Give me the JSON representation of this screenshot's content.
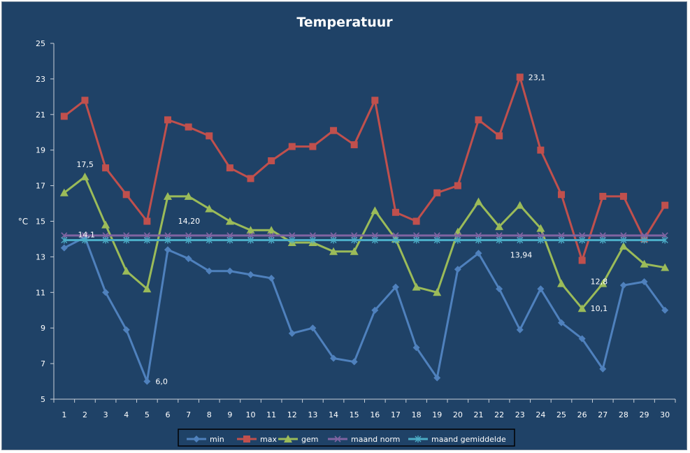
{
  "chart_data": {
    "type": "line",
    "title": "Temperatuur",
    "ylabel": "°C",
    "xlabel": "",
    "ylim": [
      5,
      25
    ],
    "yticks": [
      5,
      7,
      9,
      11,
      13,
      15,
      17,
      19,
      21,
      23,
      25
    ],
    "categories": [
      "1",
      "2",
      "3",
      "4",
      "5",
      "6",
      "7",
      "8",
      "9",
      "10",
      "11",
      "12",
      "13",
      "14",
      "15",
      "16",
      "17",
      "18",
      "19",
      "20",
      "21",
      "22",
      "23",
      "24",
      "25",
      "26",
      "27",
      "28",
      "29",
      "30"
    ],
    "grid": false,
    "legend_position": "bottom",
    "series": [
      {
        "name": "min",
        "color": "#4f81bd",
        "marker": "diamond",
        "values": [
          13.5,
          14.1,
          11.0,
          8.9,
          6.0,
          13.4,
          12.9,
          12.2,
          12.2,
          12.0,
          11.8,
          8.7,
          9.0,
          7.3,
          7.1,
          10.0,
          11.3,
          7.9,
          6.2,
          12.3,
          13.2,
          11.2,
          8.9,
          11.2,
          9.3,
          8.4,
          6.7,
          11.4,
          11.6,
          10.0
        ]
      },
      {
        "name": "max",
        "color": "#c0504d",
        "marker": "square",
        "values": [
          20.9,
          21.8,
          18.0,
          16.5,
          15.0,
          20.7,
          20.3,
          19.8,
          18.0,
          17.4,
          18.4,
          19.2,
          19.2,
          20.1,
          19.3,
          21.8,
          15.5,
          15.0,
          16.6,
          17.0,
          20.7,
          19.8,
          23.1,
          19.0,
          16.5,
          12.8,
          16.4,
          16.4,
          14.0,
          15.9
        ]
      },
      {
        "name": "gem",
        "color": "#9bbb59",
        "marker": "triangle",
        "values": [
          16.6,
          17.5,
          14.8,
          12.2,
          11.2,
          16.4,
          16.4,
          15.7,
          15.0,
          14.5,
          14.5,
          13.8,
          13.8,
          13.3,
          13.3,
          15.6,
          14.0,
          11.3,
          11.0,
          14.4,
          16.1,
          14.7,
          15.9,
          14.6,
          11.5,
          10.1,
          11.5,
          13.6,
          12.6,
          12.4
        ]
      },
      {
        "name": "maand norm",
        "color": "#8064a2",
        "marker": "x",
        "values": [
          14.2,
          14.2,
          14.2,
          14.2,
          14.2,
          14.2,
          14.2,
          14.2,
          14.2,
          14.2,
          14.2,
          14.2,
          14.2,
          14.2,
          14.2,
          14.2,
          14.2,
          14.2,
          14.2,
          14.2,
          14.2,
          14.2,
          14.2,
          14.2,
          14.2,
          14.2,
          14.2,
          14.2,
          14.2,
          14.2
        ]
      },
      {
        "name": "maand gemiddelde",
        "color": "#4bacc6",
        "marker": "star",
        "values": [
          13.94,
          13.94,
          13.94,
          13.94,
          13.94,
          13.94,
          13.94,
          13.94,
          13.94,
          13.94,
          13.94,
          13.94,
          13.94,
          13.94,
          13.94,
          13.94,
          13.94,
          13.94,
          13.94,
          13.94,
          13.94,
          13.94,
          13.94,
          13.94,
          13.94,
          13.94,
          13.94,
          13.94,
          13.94,
          13.94
        ]
      }
    ],
    "annotations": [
      {
        "text": "17,5",
        "series": "gem",
        "index": 1,
        "place": "above-left"
      },
      {
        "text": "14,1",
        "series": "min",
        "index": 1,
        "place": "on"
      },
      {
        "text": "6,0",
        "series": "min",
        "index": 4,
        "place": "right"
      },
      {
        "text": "14,20",
        "series": "maand norm",
        "index": 6,
        "place": "above"
      },
      {
        "text": "23,1",
        "series": "max",
        "index": 22,
        "place": "right"
      },
      {
        "text": "13,94",
        "series": "maand gemiddelde",
        "index": 22,
        "place": "below"
      },
      {
        "text": "12,8",
        "series": "max",
        "index": 25,
        "place": "below-right"
      },
      {
        "text": "10,1",
        "series": "gem",
        "index": 25,
        "place": "right"
      }
    ]
  }
}
